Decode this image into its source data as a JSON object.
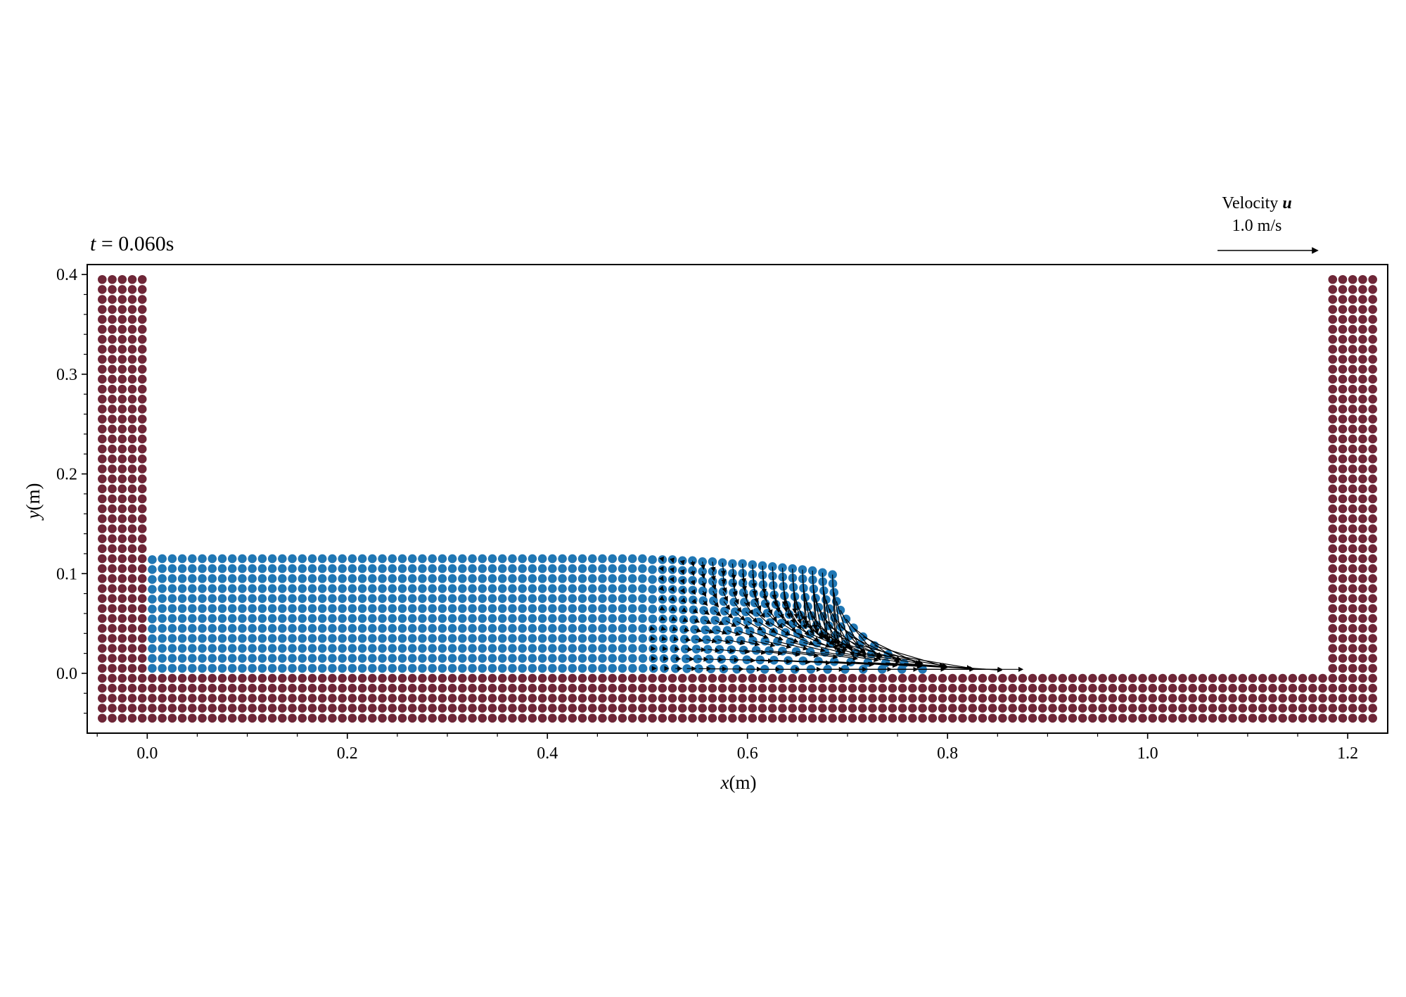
{
  "chart_data": {
    "type": "scatter",
    "title": "t = 0.060s",
    "title_prefix": "t = ",
    "title_value": "0.060s",
    "xlabel": "x(m)",
    "ylabel": "y(m)",
    "xlim": [
      -0.06,
      1.24
    ],
    "ylim": [
      -0.06,
      0.41
    ],
    "x_ticks": [
      0.0,
      0.2,
      0.4,
      0.6,
      0.8,
      1.0,
      1.2
    ],
    "x_tick_labels": [
      "0.0",
      "0.2",
      "0.4",
      "0.6",
      "0.8",
      "1.0",
      "1.2"
    ],
    "x_minor_step": 0.05,
    "y_ticks": [
      0.0,
      0.1,
      0.2,
      0.3,
      0.4
    ],
    "y_tick_labels": [
      "0.0",
      "0.1",
      "0.2",
      "0.3",
      "0.4"
    ],
    "y_minor_step": 0.02,
    "particle_spacing": 0.01,
    "colors": {
      "fluid": "#2077b4",
      "wall": "#6e2637",
      "arrow": "#000000",
      "axis": "#000000"
    },
    "series": [
      {
        "name": "wall",
        "description": "boundary particles: 5 layers",
        "bottom_layer": {
          "x_range": [
            -0.045,
            1.225
          ],
          "y_range": [
            -0.045,
            -0.005
          ]
        },
        "left_column": {
          "x_range": [
            -0.045,
            -0.005
          ],
          "y_range": [
            0.005,
            0.395
          ]
        },
        "right_column": {
          "x_range": [
            1.185,
            1.225
          ],
          "y_range": [
            0.005,
            0.395
          ]
        }
      },
      {
        "name": "fluid",
        "columns": 69,
        "rows": 12,
        "x_start": 0.005,
        "column_step": 0.01,
        "column_top_heights": [
          0.114,
          0.115,
          0.115,
          0.115,
          0.115,
          0.115,
          0.115,
          0.115,
          0.115,
          0.115,
          0.115,
          0.115,
          0.115,
          0.115,
          0.115,
          0.115,
          0.115,
          0.115,
          0.115,
          0.115,
          0.115,
          0.115,
          0.115,
          0.115,
          0.115,
          0.115,
          0.115,
          0.115,
          0.115,
          0.115,
          0.115,
          0.115,
          0.115,
          0.115,
          0.115,
          0.115,
          0.115,
          0.115,
          0.115,
          0.115,
          0.115,
          0.115,
          0.115,
          0.115,
          0.115,
          0.115,
          0.115,
          0.115,
          0.115,
          0.115,
          0.114,
          0.114,
          0.114,
          0.113,
          0.113,
          0.112,
          0.112,
          0.111,
          0.11,
          0.11,
          0.109,
          0.108,
          0.107,
          0.106,
          0.105,
          0.104,
          0.103,
          0.101,
          0.099
        ],
        "front_spread_at_bottom": 0.05
      }
    ],
    "velocity_field": {
      "scale_ms_per_arrow": 1.0,
      "arrow_start_x": 0.47,
      "max_speed_ms": 1.0
    },
    "velocity_key": {
      "label": "Velocity",
      "symbol": "u",
      "value_label": "1.0 m/s",
      "value": 1.0
    }
  }
}
